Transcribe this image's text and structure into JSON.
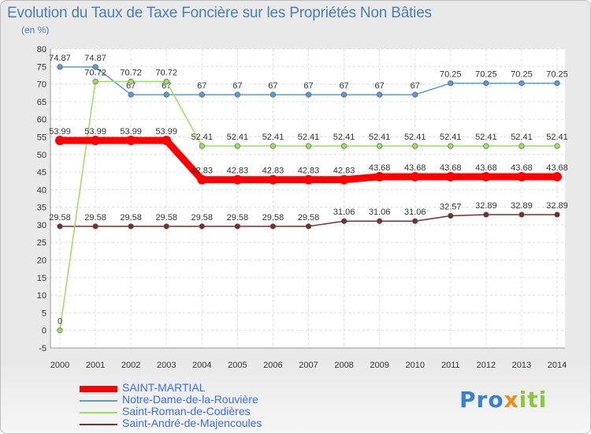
{
  "chart_data": {
    "type": "line",
    "title": "Evolution du Taux de Taxe Foncière sur les Propriétés Non Bâties",
    "ylabel": "(en %)",
    "xlabel": "",
    "ylim": [
      -5,
      80
    ],
    "yticks": [
      -5,
      0,
      5,
      10,
      15,
      20,
      25,
      30,
      35,
      40,
      45,
      50,
      55,
      60,
      65,
      70,
      75,
      80
    ],
    "grid": true,
    "legend_position": "bottom-left",
    "x": [
      "2000",
      "2001",
      "2002",
      "2003",
      "2004",
      "2005",
      "2006",
      "2007",
      "2008",
      "2009",
      "2010",
      "2011",
      "2012",
      "2013",
      "2014"
    ],
    "series": [
      {
        "name": "SAINT-MARTIAL",
        "color": "#ff0000",
        "values": [
          53.99,
          53.99,
          53.99,
          53.99,
          42.83,
          42.83,
          42.83,
          42.83,
          42.83,
          43.68,
          43.68,
          43.68,
          43.68,
          43.68,
          43.68
        ],
        "labels": [
          "53.99",
          "53.99",
          "53.99",
          "53.99",
          "42.83",
          "42.83",
          "42.83",
          "42.83",
          "42.83",
          "43.68",
          "43.68",
          "43.68",
          "43.68",
          "43.68",
          "43.68"
        ]
      },
      {
        "name": "Notre-Dame-de-la-Rouvière",
        "color": "#5b9bd5",
        "values": [
          74.87,
          74.87,
          67,
          67,
          67,
          67,
          67,
          67,
          67,
          67,
          67,
          70.25,
          70.25,
          70.25,
          70.25
        ],
        "labels": [
          "74.87",
          "74.87",
          "67",
          "67",
          "67",
          "67",
          "67",
          "67",
          "67",
          "67",
          "67",
          "70.25",
          "70.25",
          "70.25",
          "70.25"
        ]
      },
      {
        "name": "Saint-Roman-de-Codières",
        "color": "#99e05a",
        "values": [
          0,
          70.72,
          70.72,
          70.72,
          52.41,
          52.41,
          52.41,
          52.41,
          52.41,
          52.41,
          52.41,
          52.41,
          52.41,
          52.41,
          52.41
        ],
        "labels": [
          "0",
          "70.72",
          "70.72",
          "70.72",
          "52.41",
          "52.41",
          "52.41",
          "52.41",
          "52.41",
          "52.41",
          "52.41",
          "52.41",
          "52.41",
          "52.41",
          "52.41"
        ]
      },
      {
        "name": "Saint-André-de-Majencoules",
        "color": "#7a2f2f",
        "values": [
          29.58,
          29.58,
          29.58,
          29.58,
          29.58,
          29.58,
          29.58,
          29.58,
          31.06,
          31.06,
          31.06,
          32.57,
          32.89,
          32.89,
          32.89
        ],
        "labels": [
          "29.58",
          "29.58",
          "29.58",
          "29.58",
          "29.58",
          "29.58",
          "29.58",
          "29.58",
          "31.06",
          "31.06",
          "31.06",
          "32.57",
          "32.89",
          "32.89",
          "32.89"
        ]
      }
    ]
  },
  "logo": {
    "part1": "Pro",
    "part2": "x",
    "part3": "iti"
  }
}
